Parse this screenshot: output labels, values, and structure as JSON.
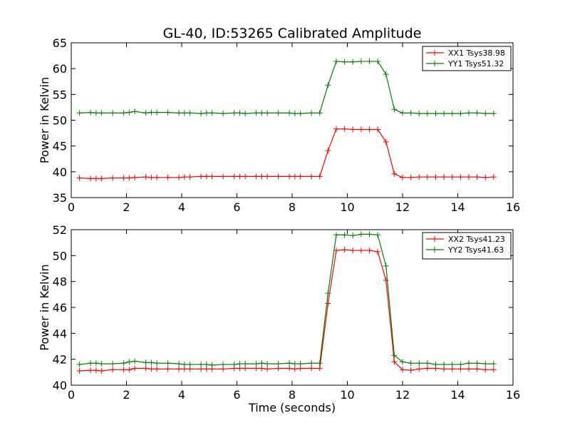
{
  "figure": {
    "title": "GL-40, ID:53265 Calibrated Amplitude",
    "xlabel": "Time (seconds)"
  },
  "chart_data": [
    {
      "type": "line",
      "title": "GL-40, ID:53265 Calibrated Amplitude",
      "xlabel": "",
      "ylabel": "Power in Kelvin",
      "xlim": [
        0,
        16
      ],
      "ylim": [
        35,
        65
      ],
      "xticks": [
        "0",
        "2",
        "4",
        "6",
        "8",
        "10",
        "12",
        "14",
        "16"
      ],
      "yticks": [
        "35",
        "40",
        "45",
        "50",
        "55",
        "60",
        "65"
      ],
      "legend_position": "top-right",
      "grid": false,
      "x": [
        0.3,
        0.7,
        0.9,
        1.1,
        1.5,
        1.9,
        2.1,
        2.3,
        2.7,
        2.9,
        3.1,
        3.5,
        3.9,
        4.1,
        4.3,
        4.7,
        4.9,
        5.1,
        5.5,
        5.9,
        6.1,
        6.3,
        6.7,
        6.9,
        7.1,
        7.5,
        7.9,
        8.1,
        8.3,
        8.7,
        9.0,
        9.3,
        9.6,
        9.9,
        10.2,
        10.5,
        10.8,
        11.1,
        11.4,
        11.7,
        12.0,
        12.3,
        12.6,
        12.9,
        13.2,
        13.5,
        13.8,
        14.1,
        14.4,
        14.7,
        15.0,
        15.3
      ],
      "series": [
        {
          "name": "XX1 Tsys38.98",
          "color": "#ff0000",
          "values": [
            38.8,
            38.7,
            38.7,
            38.7,
            38.8,
            38.8,
            38.8,
            38.9,
            39.0,
            38.9,
            38.9,
            38.9,
            38.9,
            39.0,
            39.0,
            39.1,
            39.1,
            39.1,
            39.1,
            39.1,
            39.1,
            39.1,
            39.1,
            39.1,
            39.1,
            39.1,
            39.1,
            39.1,
            39.1,
            39.1,
            39.1,
            44.1,
            48.3,
            48.3,
            48.2,
            48.2,
            48.2,
            48.2,
            45.8,
            39.6,
            38.9,
            38.9,
            39.0,
            39.0,
            39.0,
            39.0,
            39.0,
            39.0,
            39.0,
            39.0,
            38.9,
            39.0
          ]
        },
        {
          "name": "YY1 Tsys51.32",
          "color": "#008000",
          "values": [
            51.4,
            51.5,
            51.4,
            51.4,
            51.4,
            51.4,
            51.5,
            51.7,
            51.4,
            51.5,
            51.5,
            51.5,
            51.4,
            51.4,
            51.4,
            51.3,
            51.4,
            51.4,
            51.3,
            51.4,
            51.4,
            51.3,
            51.4,
            51.4,
            51.4,
            51.4,
            51.4,
            51.3,
            51.3,
            51.4,
            51.4,
            56.8,
            61.4,
            61.3,
            61.3,
            61.4,
            61.4,
            61.4,
            58.9,
            52.1,
            51.4,
            51.4,
            51.3,
            51.3,
            51.3,
            51.3,
            51.3,
            51.3,
            51.4,
            51.4,
            51.3,
            51.3
          ]
        }
      ]
    },
    {
      "type": "line",
      "xlabel": "Time (seconds)",
      "ylabel": "Power in Kelvin",
      "xlim": [
        0,
        16
      ],
      "ylim": [
        40,
        52
      ],
      "xticks": [
        "0",
        "2",
        "4",
        "6",
        "8",
        "10",
        "12",
        "14",
        "16"
      ],
      "yticks": [
        "40",
        "42",
        "44",
        "46",
        "48",
        "50",
        "52"
      ],
      "legend_position": "top-right",
      "grid": false,
      "x": [
        0.3,
        0.7,
        0.9,
        1.1,
        1.5,
        1.9,
        2.1,
        2.3,
        2.7,
        2.9,
        3.1,
        3.5,
        3.9,
        4.1,
        4.3,
        4.7,
        4.9,
        5.1,
        5.5,
        5.9,
        6.1,
        6.3,
        6.7,
        6.9,
        7.1,
        7.5,
        7.9,
        8.1,
        8.3,
        8.7,
        9.0,
        9.3,
        9.6,
        9.9,
        10.2,
        10.5,
        10.8,
        11.1,
        11.4,
        11.7,
        12.0,
        12.3,
        12.6,
        12.9,
        13.2,
        13.5,
        13.8,
        14.1,
        14.4,
        14.7,
        15.0,
        15.3
      ],
      "series": [
        {
          "name": "XX2 Tsys41.23",
          "color": "#ff0000",
          "values": [
            41.1,
            41.15,
            41.15,
            41.1,
            41.2,
            41.2,
            41.2,
            41.3,
            41.3,
            41.25,
            41.25,
            41.25,
            41.25,
            41.25,
            41.25,
            41.25,
            41.25,
            41.25,
            41.25,
            41.3,
            41.3,
            41.3,
            41.3,
            41.3,
            41.25,
            41.3,
            41.3,
            41.25,
            41.3,
            41.3,
            41.3,
            46.3,
            50.4,
            50.45,
            50.4,
            50.4,
            50.4,
            50.3,
            48.1,
            41.8,
            41.2,
            41.15,
            41.25,
            41.3,
            41.3,
            41.25,
            41.25,
            41.25,
            41.25,
            41.25,
            41.2,
            41.2
          ]
        },
        {
          "name": "YY2 Tsys41.63",
          "color": "#008000",
          "values": [
            41.6,
            41.7,
            41.7,
            41.65,
            41.65,
            41.7,
            41.8,
            41.85,
            41.75,
            41.75,
            41.7,
            41.7,
            41.65,
            41.6,
            41.6,
            41.6,
            41.6,
            41.55,
            41.6,
            41.6,
            41.65,
            41.65,
            41.65,
            41.7,
            41.65,
            41.65,
            41.7,
            41.65,
            41.65,
            41.7,
            41.7,
            47.1,
            51.6,
            51.6,
            51.55,
            51.65,
            51.65,
            51.6,
            49.2,
            42.3,
            41.8,
            41.7,
            41.7,
            41.7,
            41.6,
            41.6,
            41.6,
            41.6,
            41.7,
            41.7,
            41.65,
            41.65
          ]
        }
      ]
    }
  ]
}
